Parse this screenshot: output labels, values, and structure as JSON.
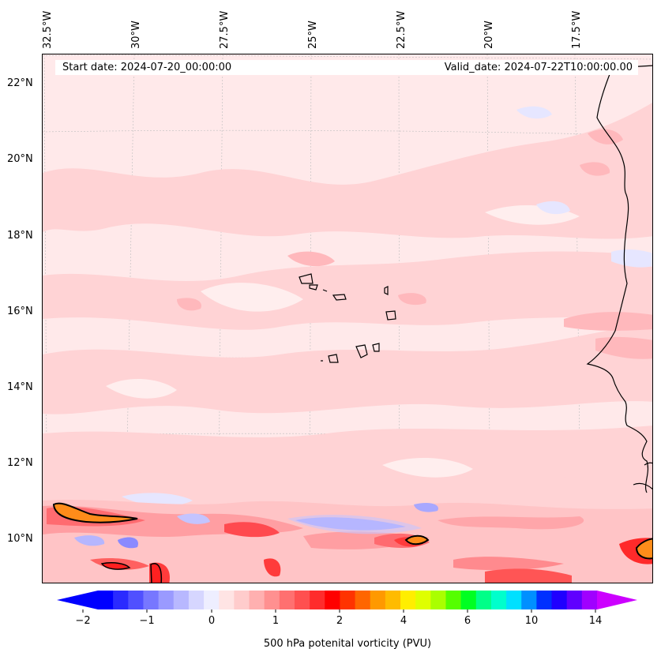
{
  "map": {
    "longitude_labels": [
      "32.5°W",
      "30°W",
      "27.5°W",
      "25°W",
      "22.5°W",
      "20°W",
      "17.5°W"
    ],
    "latitude_labels": [
      "22°N",
      "20°N",
      "18°N",
      "16°N",
      "14°N",
      "12°N",
      "10°N"
    ],
    "start_date": "Start date: 2024-07-20_00:00:00",
    "valid_date": "Valid_date: 2024-07-22T10:00:00.00",
    "field": "500 hPa potenital vorticity (PVU)",
    "extent": {
      "lon_min": -32.6,
      "lon_max": -15.2,
      "lat_min": 8.8,
      "lat_max": 22.8
    },
    "background_color": "#ffe9ea"
  },
  "colorbar": {
    "label": "500 hPa potenital vorticity (PVU)",
    "tick_labels": [
      "−2",
      "−1",
      "0",
      "1",
      "2",
      "4",
      "6",
      "10",
      "14"
    ],
    "colors": [
      "#0000ff",
      "#2a2aff",
      "#5050ff",
      "#7777ff",
      "#9a9aff",
      "#b8b8ff",
      "#d6d6ff",
      "#eeeeff",
      "#ffe4e4",
      "#ffcccc",
      "#ffb0b0",
      "#ff9090",
      "#ff7070",
      "#ff5050",
      "#ff2c2c",
      "#ff0000",
      "#ff3300",
      "#ff6600",
      "#ff9900",
      "#ffbb00",
      "#ffee00",
      "#dfff00",
      "#aaff00",
      "#55ff00",
      "#00ff22",
      "#00ff88",
      "#00ffcc",
      "#00e0ff",
      "#0090ff",
      "#0030ff",
      "#2000ff",
      "#6000ff",
      "#a000ff"
    ],
    "under_color": "#0000ff",
    "over_color": "#cc00ff"
  }
}
